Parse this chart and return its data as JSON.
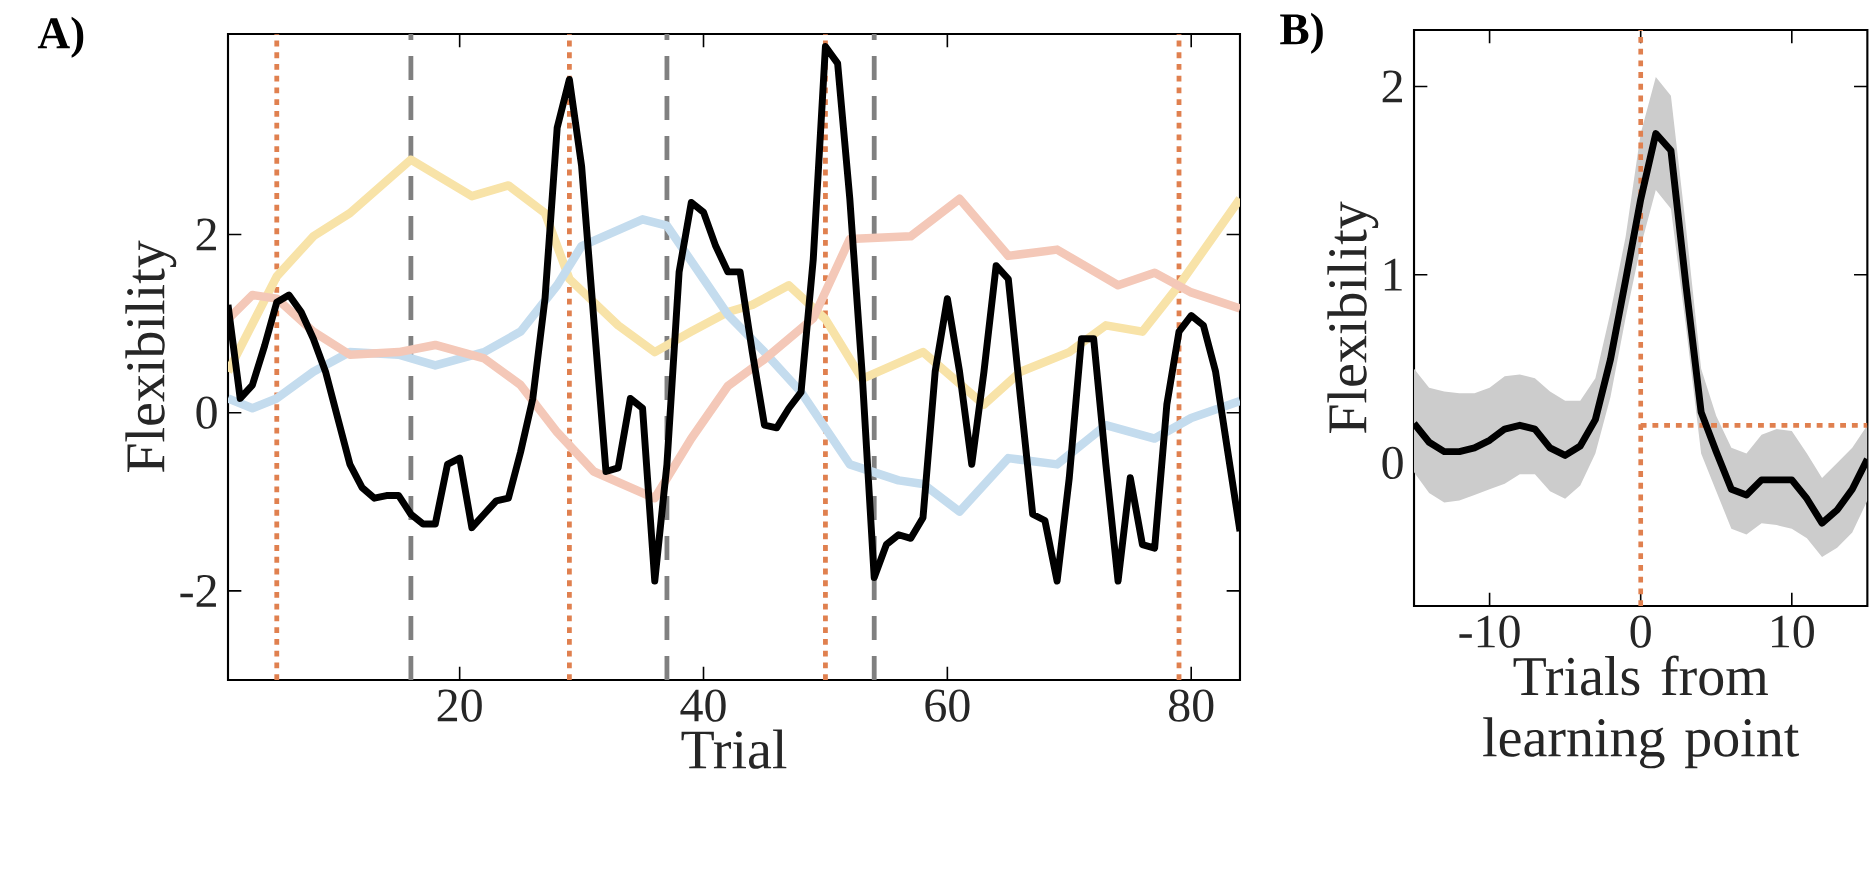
{
  "chart_data": [
    {
      "type": "line",
      "title": "A)",
      "xlabel": "Trial",
      "ylabel": "Flexibility",
      "xlim": [
        1,
        84
      ],
      "ylim": [
        -3,
        4.25
      ],
      "xticks": [
        20,
        40,
        60,
        80
      ],
      "yticks": [
        -2,
        0,
        2
      ],
      "series": [
        {
          "color": "#f8e3a8",
          "x": [
            1,
            5,
            8,
            11,
            16,
            21,
            24,
            27,
            29,
            33,
            36,
            39,
            42,
            44,
            47,
            50,
            53,
            58,
            63,
            66,
            70,
            73,
            76,
            79,
            84
          ],
          "values": [
            0.46,
            1.53,
            1.98,
            2.24,
            2.84,
            2.43,
            2.55,
            2.24,
            1.5,
            0.98,
            0.68,
            0.91,
            1.13,
            1.21,
            1.43,
            1.05,
            0.38,
            0.68,
            0.09,
            0.46,
            0.68,
            0.98,
            0.91,
            1.43,
            2.4
          ]
        },
        {
          "color": "#c4dcee",
          "x": [
            1,
            3,
            5,
            8,
            11,
            15,
            18,
            22,
            25,
            28,
            30,
            35,
            37,
            40,
            42,
            45,
            48,
            52,
            56,
            58,
            61,
            65,
            69,
            73,
            77,
            80,
            84
          ],
          "values": [
            0.16,
            0.05,
            0.16,
            0.46,
            0.68,
            0.65,
            0.53,
            0.68,
            0.91,
            1.43,
            1.87,
            2.17,
            2.1,
            1.5,
            1.1,
            0.68,
            0.23,
            -0.58,
            -0.76,
            -0.8,
            -1.11,
            -0.51,
            -0.58,
            -0.14,
            -0.29,
            -0.06,
            0.13
          ]
        },
        {
          "color": "#f4c8b8",
          "x": [
            1,
            3,
            5,
            8,
            11,
            15,
            18,
            22,
            25,
            28,
            31,
            36,
            39,
            42,
            45,
            49,
            52,
            57,
            61,
            65,
            69,
            74,
            77,
            80,
            84
          ],
          "values": [
            1.05,
            1.32,
            1.28,
            0.91,
            0.65,
            0.68,
            0.76,
            0.61,
            0.31,
            -0.22,
            -0.66,
            -0.96,
            -0.29,
            0.3,
            0.6,
            1.06,
            1.95,
            1.98,
            2.4,
            1.76,
            1.83,
            1.43,
            1.57,
            1.35,
            1.17
          ]
        },
        {
          "color": "#000000",
          "x": [
            1,
            2,
            3,
            4,
            5,
            6,
            7,
            8,
            9,
            10,
            11,
            12,
            13,
            14,
            15,
            16,
            17,
            18,
            19,
            20,
            21,
            22,
            23,
            24,
            25,
            26,
            27,
            28,
            29,
            30,
            31,
            32,
            33,
            34,
            35,
            36,
            37,
            38,
            39,
            40,
            41,
            42,
            43,
            44,
            45,
            46,
            47,
            48,
            49,
            50,
            51,
            52,
            53,
            54,
            55,
            56,
            57,
            58,
            59,
            60,
            61,
            62,
            63,
            64,
            65,
            66,
            67,
            68,
            69,
            70,
            71,
            72,
            73,
            74,
            75,
            76,
            77,
            78,
            79,
            80,
            81,
            82,
            83,
            84
          ],
          "values": [
            1.21,
            0.16,
            0.31,
            0.75,
            1.24,
            1.32,
            1.13,
            0.83,
            0.46,
            -0.06,
            -0.58,
            -0.84,
            -0.96,
            -0.93,
            -0.93,
            -1.14,
            -1.25,
            -1.25,
            -0.58,
            -0.51,
            -1.29,
            -1.14,
            -0.99,
            -0.96,
            -0.44,
            0.16,
            1.28,
            3.2,
            3.74,
            2.77,
            1.05,
            -0.66,
            -0.62,
            0.16,
            0.05,
            -1.89,
            -0.58,
            1.58,
            2.36,
            2.25,
            1.87,
            1.58,
            1.58,
            0.68,
            -0.14,
            -0.17,
            0.05,
            0.23,
            1.72,
            4.11,
            3.92,
            2.4,
            0.46,
            -1.85,
            -1.48,
            -1.37,
            -1.41,
            -1.18,
            0.46,
            1.28,
            0.46,
            -0.58,
            0.46,
            1.65,
            1.5,
            0.16,
            -1.14,
            -1.21,
            -1.89,
            -0.73,
            0.83,
            0.83,
            -0.58,
            -1.89,
            -0.73,
            -1.48,
            -1.52,
            0.09,
            0.91,
            1.09,
            0.98,
            0.46,
            -0.44,
            -1.33
          ]
        }
      ],
      "ref_lines": [
        {
          "axis": "x",
          "value": 5,
          "color": "#e0804f",
          "line_style": "dotted"
        },
        {
          "axis": "x",
          "value": 29,
          "color": "#e0804f",
          "line_style": "dotted"
        },
        {
          "axis": "x",
          "value": 50,
          "color": "#e0804f",
          "line_style": "dotted"
        },
        {
          "axis": "x",
          "value": 79,
          "color": "#e0804f",
          "line_style": "dotted"
        },
        {
          "axis": "x",
          "value": 16,
          "color": "#808080",
          "line_style": "dashed"
        },
        {
          "axis": "x",
          "value": 37,
          "color": "#808080",
          "line_style": "dashed"
        },
        {
          "axis": "x",
          "value": 54,
          "color": "#808080",
          "line_style": "dashed"
        }
      ]
    },
    {
      "type": "line",
      "title": "B)",
      "xlabel": "Trials from learning point",
      "ylabel": "Flexibility",
      "xlim": [
        -15,
        15
      ],
      "ylim": [
        -0.76,
        2.3
      ],
      "xticks": [
        -10,
        0,
        10
      ],
      "yticks": [
        0,
        1,
        2
      ],
      "series": [
        {
          "color": "#000000",
          "x": [
            -15,
            -14,
            -13,
            -12,
            -11,
            -10,
            -9,
            -8,
            -7,
            -6,
            -5,
            -4,
            -3,
            -2,
            -1,
            0,
            1,
            2,
            3,
            4,
            5,
            6,
            7,
            8,
            9,
            10,
            11,
            12,
            13,
            14,
            15
          ],
          "values": [
            0.21,
            0.11,
            0.06,
            0.06,
            0.08,
            0.12,
            0.18,
            0.2,
            0.18,
            0.08,
            0.04,
            0.09,
            0.23,
            0.55,
            0.97,
            1.4,
            1.75,
            1.66,
            0.94,
            0.27,
            0.06,
            -0.14,
            -0.17,
            -0.09,
            -0.09,
            -0.09,
            -0.19,
            -0.32,
            -0.25,
            -0.14,
            0.02
          ],
          "upper": [
            0.5,
            0.4,
            0.38,
            0.37,
            0.37,
            0.4,
            0.46,
            0.47,
            0.45,
            0.38,
            0.33,
            0.33,
            0.45,
            0.8,
            1.2,
            1.75,
            2.05,
            1.95,
            1.25,
            0.5,
            0.25,
            0.08,
            0.05,
            0.15,
            0.18,
            0.17,
            0.05,
            -0.08,
            0.0,
            0.08,
            0.2
          ],
          "lower": [
            -0.05,
            -0.16,
            -0.21,
            -0.2,
            -0.17,
            -0.14,
            -0.11,
            -0.06,
            -0.06,
            -0.15,
            -0.19,
            -0.12,
            0.05,
            0.35,
            0.77,
            1.15,
            1.45,
            1.35,
            0.72,
            0.05,
            -0.15,
            -0.35,
            -0.38,
            -0.32,
            -0.33,
            -0.35,
            -0.4,
            -0.5,
            -0.45,
            -0.37,
            -0.2
          ]
        }
      ],
      "ref_lines": [
        {
          "axis": "x",
          "value": 0,
          "color": "#e0804f",
          "line_style": "dotted"
        },
        {
          "axis": "y",
          "value": 0.2,
          "color": "#e0804f",
          "line_style": "dotted"
        }
      ]
    }
  ]
}
